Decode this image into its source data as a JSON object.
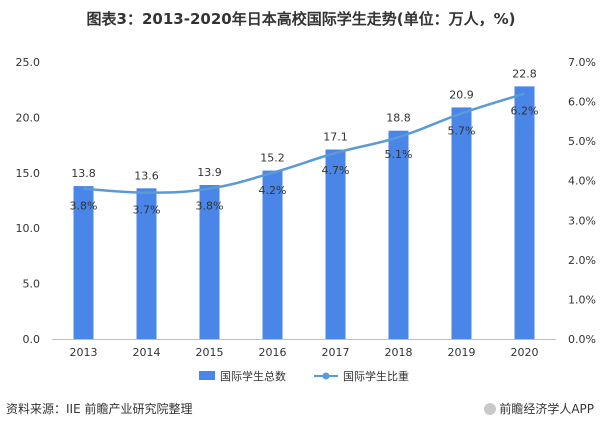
{
  "title": "图表3：2013-2020年日本高校国际学生走势(单位：万人，%)",
  "source_text": "资料来源：IIE 前瞻产业研究院整理",
  "brand_text": "前瞻经济学人APP",
  "colors": {
    "bar": "#4a86e8",
    "line": "#5b9bd5",
    "text": "#333333",
    "axis": "#bfbfbf"
  },
  "chart_data": {
    "type": "bar",
    "categories": [
      "2013",
      "2014",
      "2015",
      "2016",
      "2017",
      "2018",
      "2019",
      "2020"
    ],
    "series": [
      {
        "name": "国际学生总数",
        "type": "bar",
        "axis": "left",
        "values": [
          13.8,
          13.6,
          13.9,
          15.2,
          17.1,
          18.8,
          20.9,
          22.8
        ],
        "labels": [
          "13.8",
          "13.6",
          "13.9",
          "15.2",
          "17.1",
          "18.8",
          "20.9",
          "22.8"
        ]
      },
      {
        "name": "国际学生比重",
        "type": "line",
        "axis": "right",
        "values": [
          3.8,
          3.7,
          3.8,
          4.2,
          4.7,
          5.1,
          5.7,
          6.2
        ],
        "labels": [
          "3.8%",
          "3.7%",
          "3.8%",
          "4.2%",
          "4.7%",
          "5.1%",
          "5.7%",
          "6.2%"
        ]
      }
    ],
    "y_left": {
      "ylim": [
        0,
        25
      ],
      "ticks": [
        "0.0",
        "5.0",
        "10.0",
        "15.0",
        "20.0",
        "25.0"
      ]
    },
    "y_right": {
      "ylim": [
        0,
        7
      ],
      "ticks": [
        "0.0%",
        "1.0%",
        "2.0%",
        "3.0%",
        "4.0%",
        "5.0%",
        "6.0%",
        "7.0%"
      ]
    },
    "legend": "bottom"
  }
}
